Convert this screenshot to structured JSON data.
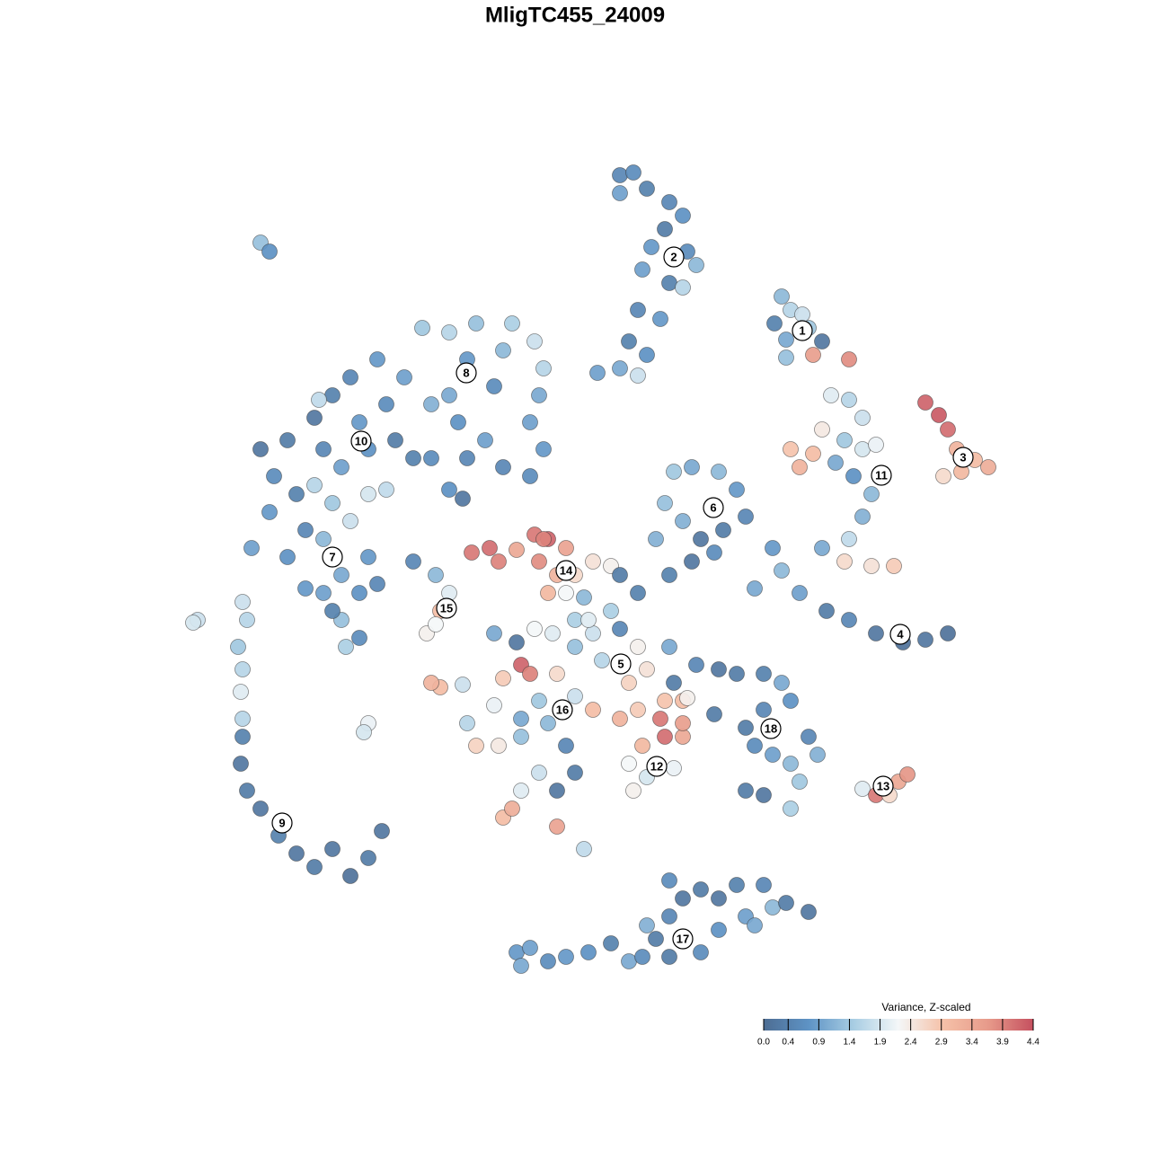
{
  "chart_data": {
    "type": "scatter",
    "title": "MligTC455_24009",
    "xlim": [
      0,
      1280
    ],
    "ylim": [
      1280,
      0
    ],
    "x": [
      690,
      705,
      720,
      690,
      745,
      760,
      740,
      725,
      765,
      775,
      715,
      745,
      760,
      710,
      735,
      700,
      720,
      690,
      665,
      710,
      870,
      880,
      862,
      875,
      900,
      915,
      905,
      945,
      875,
      893,
      1030,
      1045,
      1055,
      1065,
      1085,
      1100,
      1050,
      1070,
      925,
      945,
      960,
      915,
      940,
      960,
      880,
      905,
      890,
      930,
      950,
      970,
      960,
      945,
      915,
      940,
      970,
      995,
      975,
      860,
      870,
      890,
      920,
      945,
      975,
      1005,
      1030,
      1055,
      840,
      750,
      770,
      800,
      820,
      740,
      760,
      780,
      805,
      830,
      770,
      795,
      745,
      730,
      470,
      500,
      530,
      570,
      595,
      605,
      600,
      590,
      605,
      590,
      560,
      540,
      510,
      480,
      450,
      420,
      390,
      370,
      350,
      320,
      305,
      300,
      280,
      320,
      340,
      380,
      410,
      440,
      460,
      500,
      550,
      520,
      560,
      430,
      400,
      360,
      330,
      290,
      355,
      480,
      520,
      500,
      515,
      350,
      370,
      390,
      360,
      380,
      400,
      420,
      360,
      380,
      400,
      385,
      340,
      410,
      430,
      410,
      370,
      290,
      300,
      220,
      215,
      270,
      275,
      265,
      270,
      268,
      270,
      270,
      268,
      275,
      290,
      310,
      330,
      350,
      370,
      390,
      410,
      425,
      410,
      405,
      460,
      485,
      500,
      490,
      475,
      485,
      525,
      545,
      555,
      575,
      595,
      610,
      630,
      600,
      620,
      610,
      640,
      660,
      680,
      605,
      630,
      690,
      710,
      650,
      640,
      660,
      690,
      710,
      720,
      700,
      670,
      640,
      615,
      595,
      580,
      590,
      560,
      620,
      600,
      640,
      610,
      580,
      550,
      520,
      530,
      555,
      580,
      630,
      640,
      620,
      600,
      580,
      560,
      570,
      620,
      650,
      660,
      690,
      710,
      735,
      740,
      760,
      760,
      715,
      700,
      720,
      750,
      705,
      740,
      760,
      745,
      750,
      775,
      490,
      480,
      515,
      550,
      575,
      655,
      680,
      800,
      820,
      850,
      870,
      880,
      850,
      830,
      840,
      860,
      880,
      890,
      880,
      850,
      830,
      900,
      910,
      795,
      765,
      960,
      975,
      990,
      1000,
      1010,
      575,
      590,
      610,
      630,
      655,
      680,
      700,
      715,
      730,
      720,
      745,
      760,
      780,
      800,
      820,
      850,
      860,
      875,
      900,
      830,
      800,
      780,
      745,
      745,
      840,
      580
    ],
    "y": [
      195,
      192,
      210,
      215,
      225,
      240,
      255,
      275,
      280,
      295,
      300,
      315,
      320,
      345,
      355,
      380,
      395,
      410,
      415,
      418,
      330,
      345,
      360,
      378,
      365,
      380,
      395,
      400,
      398,
      350,
      448,
      462,
      478,
      500,
      512,
      520,
      530,
      525,
      440,
      445,
      465,
      478,
      490,
      500,
      500,
      505,
      520,
      515,
      530,
      550,
      575,
      600,
      610,
      625,
      630,
      630,
      495,
      610,
      635,
      660,
      680,
      690,
      705,
      715,
      712,
      705,
      655,
      525,
      520,
      525,
      545,
      560,
      580,
      600,
      590,
      575,
      625,
      615,
      640,
      600,
      365,
      370,
      360,
      360,
      380,
      410,
      440,
      470,
      500,
      530,
      520,
      490,
      470,
      450,
      420,
      400,
      420,
      440,
      465,
      490,
      530,
      570,
      610,
      620,
      590,
      520,
      500,
      490,
      510,
      440,
      430,
      400,
      390,
      450,
      470,
      500,
      550,
      500,
      445,
      510,
      510,
      545,
      555,
      540,
      560,
      580,
      600,
      640,
      660,
      650,
      660,
      690,
      710,
      720,
      655,
      550,
      545,
      620,
      680,
      270,
      280,
      690,
      693,
      670,
      690,
      720,
      745,
      770,
      800,
      820,
      850,
      880,
      900,
      930,
      950,
      965,
      945,
      975,
      955,
      925,
      805,
      815,
      625,
      640,
      660,
      680,
      705,
      695,
      615,
      610,
      625,
      612,
      595,
      600,
      610,
      625,
      640,
      660,
      640,
      625,
      630,
      600,
      660,
      640,
      660,
      665,
      690,
      705,
      700,
      720,
      745,
      760,
      735,
      720,
      705,
      700,
      740,
      750,
      755,
      750,
      780,
      775,
      805,
      800,
      785,
      805,
      830,
      830,
      820,
      830,
      860,
      880,
      860,
      880,
      910,
      900,
      920,
      945,
      790,
      800,
      790,
      800,
      820,
      820,
      805,
      830,
      850,
      865,
      855,
      880,
      780,
      780,
      720,
      760,
      740,
      765,
      760,
      762,
      705,
      715,
      690,
      680,
      745,
      750,
      750,
      760,
      780,
      790,
      810,
      830,
      840,
      850,
      870,
      900,
      885,
      880,
      820,
      840,
      795,
      777,
      878,
      885,
      885,
      870,
      862,
      1060,
      1055,
      1070,
      1065,
      1060,
      1050,
      1070,
      1065,
      1045,
      1030,
      1020,
      1000,
      990,
      1000,
      985,
      985,
      1010,
      1005,
      1015,
      1020,
      1035,
      1060,
      1065,
      980,
      1030,
      1075
    ],
    "values": [
      0.5,
      0.6,
      0.4,
      0.9,
      0.5,
      0.7,
      0.3,
      0.8,
      0.6,
      1.2,
      0.9,
      0.4,
      1.6,
      0.5,
      0.8,
      0.4,
      0.7,
      1.0,
      0.9,
      1.8,
      1.2,
      1.6,
      0.4,
      1.0,
      1.4,
      0.2,
      3.6,
      3.8,
      1.3,
      1.8,
      4.2,
      4.3,
      4.1,
      3.2,
      3.0,
      3.3,
      2.6,
      3.1,
      2.0,
      1.6,
      1.8,
      2.4,
      1.4,
      1.9,
      2.9,
      3.0,
      3.2,
      1.0,
      0.7,
      1.2,
      1.1,
      1.7,
      1.0,
      2.6,
      2.5,
      2.8,
      2.1,
      0.8,
      1.2,
      0.9,
      0.3,
      0.5,
      0.2,
      0.1,
      0.2,
      0.1,
      1.0,
      1.4,
      1.0,
      1.2,
      0.8,
      1.3,
      1.1,
      0.2,
      0.3,
      0.5,
      0.2,
      0.6,
      0.4,
      1.1,
      1.4,
      1.6,
      1.3,
      1.5,
      1.8,
      1.6,
      1.0,
      0.9,
      0.8,
      0.6,
      0.5,
      0.9,
      0.7,
      1.1,
      0.9,
      0.8,
      0.5,
      0.4,
      0.2,
      0.3,
      0.6,
      0.8,
      0.9,
      0.7,
      0.5,
      0.9,
      0.7,
      0.3,
      0.4,
      1.0,
      0.6,
      0.8,
      1.2,
      0.6,
      0.8,
      0.5,
      0.4,
      0.2,
      1.7,
      0.6,
      0.5,
      0.7,
      0.2,
      1.6,
      1.4,
      1.8,
      1.2,
      1.0,
      0.7,
      0.5,
      0.9,
      1.3,
      0.6,
      1.5,
      0.8,
      1.9,
      1.7,
      0.8,
      0.4,
      1.3,
      0.7,
      1.8,
      1.9,
      1.8,
      1.6,
      1.4,
      1.6,
      2.0,
      1.6,
      0.4,
      0.2,
      0.3,
      0.2,
      0.4,
      0.2,
      0.3,
      0.2,
      0.1,
      0.3,
      0.2,
      2.1,
      1.9,
      0.5,
      1.2,
      2.0,
      3.0,
      2.3,
      2.2,
      4.0,
      4.1,
      3.9,
      3.4,
      4.0,
      4.2,
      3.5,
      3.8,
      3.2,
      3.1,
      2.6,
      2.5,
      2.3,
      3.9,
      2.2,
      0.3,
      0.4,
      1.2,
      1.5,
      1.8,
      0.5,
      2.3,
      2.5,
      2.7,
      1.6,
      1.3,
      2.0,
      2.2,
      4.2,
      3.9,
      2.8,
      2.6,
      1.4,
      1.8,
      1.2,
      1.0,
      2.1,
      1.6,
      2.7,
      2.4,
      1.3,
      0.5,
      0.3,
      0.2,
      1.8,
      2.0,
      3.0,
      3.3,
      3.5,
      1.7,
      3.0,
      3.2,
      2.8,
      4.0,
      4.1,
      3.4,
      3.6,
      3.1,
      2.2,
      1.9,
      2.1,
      2.3,
      2.9,
      3.0,
      1.0,
      0.3,
      0.5,
      3.0,
      3.2,
      1.8,
      1.0,
      0.2,
      2.0,
      1.5,
      0.2,
      0.3,
      0.4,
      1.0,
      0.7,
      0.5,
      0.3,
      0.6,
      0.9,
      1.2,
      1.4,
      1.5,
      0.2,
      0.3,
      0.5,
      1.1,
      0.3,
      2.3,
      2.0,
      4.0,
      2.6,
      3.4,
      3.7,
      0.8,
      0.9,
      0.6,
      0.8,
      0.7,
      0.4,
      1.0,
      0.6,
      0.3,
      1.1,
      0.5,
      0.2,
      0.3,
      0.2,
      0.4,
      0.5,
      1.2,
      0.3,
      0.2,
      0.9,
      0.7,
      0.6,
      0.3,
      0.6,
      1.0,
      1.0
    ],
    "clusters": [
      {
        "label": "1",
        "x": 893,
        "y": 368
      },
      {
        "label": "2",
        "x": 750,
        "y": 286
      },
      {
        "label": "3",
        "x": 1072,
        "y": 509
      },
      {
        "label": "4",
        "x": 1002,
        "y": 706
      },
      {
        "label": "5",
        "x": 691,
        "y": 739
      },
      {
        "label": "6",
        "x": 794,
        "y": 565
      },
      {
        "label": "7",
        "x": 370,
        "y": 620
      },
      {
        "label": "8",
        "x": 519,
        "y": 415
      },
      {
        "label": "9",
        "x": 314,
        "y": 916
      },
      {
        "label": "10",
        "x": 402,
        "y": 491
      },
      {
        "label": "11",
        "x": 981,
        "y": 529
      },
      {
        "label": "12",
        "x": 731,
        "y": 853
      },
      {
        "label": "13",
        "x": 983,
        "y": 875
      },
      {
        "label": "14",
        "x": 630,
        "y": 635
      },
      {
        "label": "15",
        "x": 497,
        "y": 677
      },
      {
        "label": "16",
        "x": 626,
        "y": 790
      },
      {
        "label": "17",
        "x": 760,
        "y": 1045
      },
      {
        "label": "18",
        "x": 858,
        "y": 811
      }
    ],
    "colorbar": {
      "title": "Variance, Z-scaled",
      "clim": [
        0,
        4.4
      ],
      "colors": [
        "#4d6d93",
        "#5e93c5",
        "#a8cde3",
        "#f4f7f8",
        "#f5c1a8",
        "#e79a8a",
        "#c5505f"
      ],
      "ticks": [
        {
          "value": 0,
          "label": "0.0"
        },
        0.4,
        0.9,
        1.4,
        1.9,
        2.4,
        2.9,
        3.4,
        3.9,
        4.4
      ]
    }
  }
}
